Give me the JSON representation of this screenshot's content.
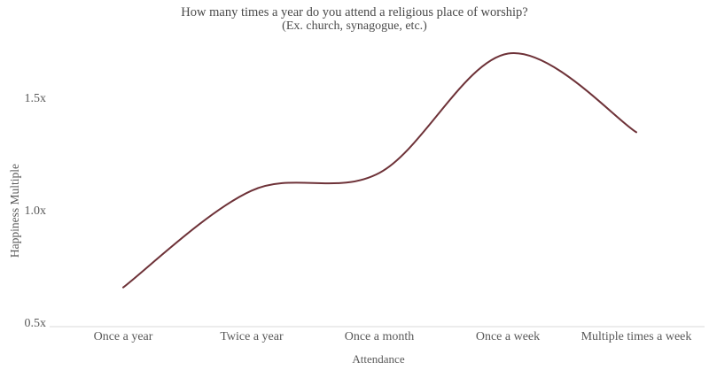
{
  "chart_data": {
    "type": "line",
    "title": "How many times a year do you attend a religious place of worship?",
    "subtitle": "(Ex. church, synagogue, etc.)",
    "categories": [
      "Once a year",
      "Twice a year",
      "Once a month",
      "Once a week",
      "Multiple times a week"
    ],
    "values": [
      0.66,
      1.09,
      1.17,
      1.7,
      1.35
    ],
    "series": [
      {
        "name": "Happiness Multiple",
        "values": [
          0.66,
          1.09,
          1.17,
          1.7,
          1.35
        ]
      }
    ],
    "xlabel": "Attendance",
    "ylabel": "Happiness Multiple",
    "ytick_labels": [
      "1.5x",
      "1.0x",
      "0.5x"
    ],
    "ytick_values": [
      1.5,
      1.0,
      0.5
    ],
    "ylim": [
      0.45,
      1.8
    ],
    "grid": false,
    "legend": false,
    "line_smoothing": "catmull-rom",
    "colors": {
      "line": "#6e3238",
      "axis": "#d9d9d9",
      "title_text": "#4a4a4a",
      "label_text": "#595959"
    }
  }
}
